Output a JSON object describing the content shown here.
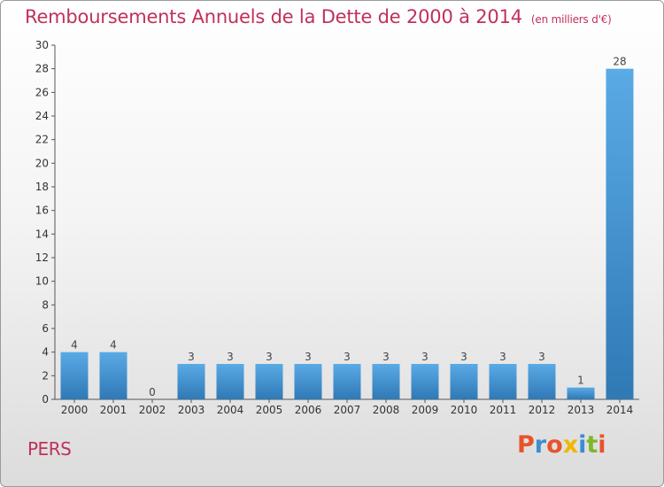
{
  "header": {
    "title": "Remboursements Annuels de la Dette de 2000 à 2014",
    "unit": "(en milliers d'€)"
  },
  "footer": {
    "commune": "PERS",
    "logo_text": "Proxiti"
  },
  "colors": {
    "title": "#c0315a",
    "bar_top": "#5aaae6",
    "bar_bottom": "#2f79b5",
    "logo_letters": [
      "#e8532a",
      "#3a8ed0",
      "#e8532a",
      "#f2b600",
      "#3a8ed0",
      "#7bb928",
      "#e8532a"
    ]
  },
  "chart_data": {
    "type": "bar",
    "title": "Remboursements Annuels de la Dette de 2000 à 2014",
    "xlabel": "",
    "ylabel": "",
    "categories": [
      "2000",
      "2001",
      "2002",
      "2003",
      "2004",
      "2005",
      "2006",
      "2007",
      "2008",
      "2009",
      "2010",
      "2011",
      "2012",
      "2013",
      "2014"
    ],
    "values": [
      4,
      4,
      0,
      3,
      3,
      3,
      3,
      3,
      3,
      3,
      3,
      3,
      3,
      1,
      28
    ],
    "data_labels": [
      "4",
      "4",
      "0",
      "3",
      "3",
      "3",
      "3",
      "3",
      "3",
      "3",
      "3",
      "3",
      "3",
      "1",
      "28"
    ],
    "ylim": [
      0,
      30
    ],
    "yticks": [
      0,
      2,
      4,
      6,
      8,
      10,
      12,
      14,
      16,
      18,
      20,
      22,
      24,
      26,
      28,
      30
    ],
    "grid": false,
    "legend": "none"
  }
}
